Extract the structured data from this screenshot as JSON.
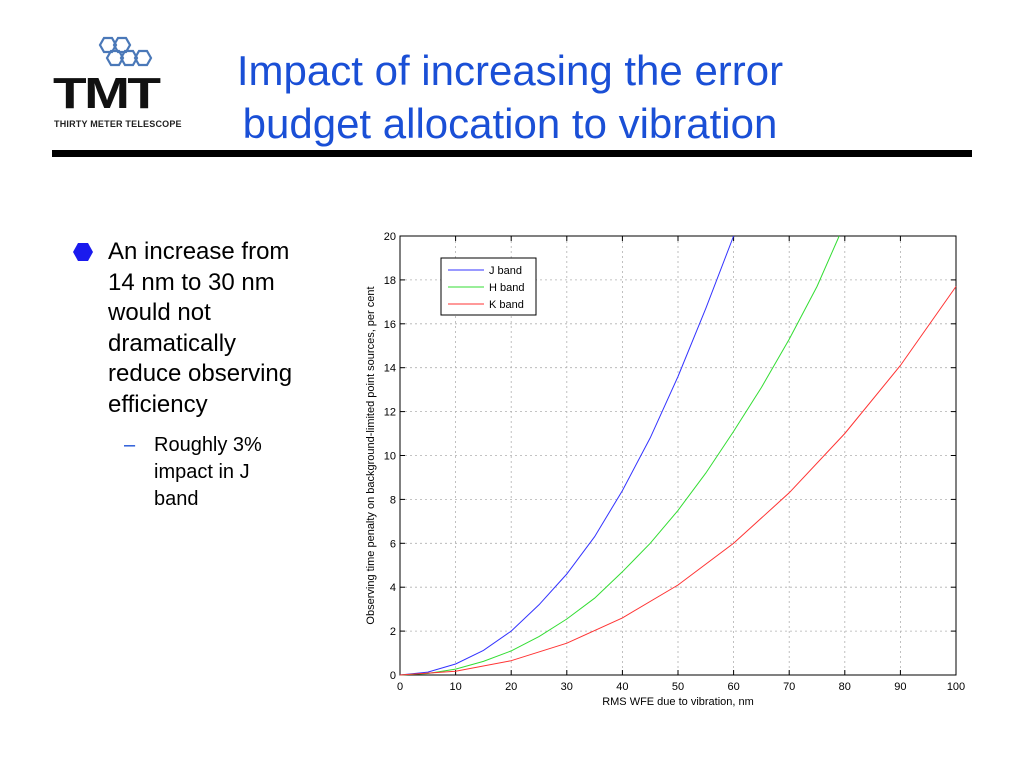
{
  "logo": {
    "mark": "TMT",
    "subtitle": "THIRTY METER TELESCOPE",
    "icon": "hexagon-cluster-icon"
  },
  "slide": {
    "title_lines": [
      "Impact of increasing the error",
      "budget allocation to vibration"
    ],
    "bullet": "An increase from\n14 nm to 30 nm\nwould not\ndramatically\nreduce observing\nefficiency",
    "sub_bullet_marker": "–",
    "sub_bullet": "Roughly 3%\nimpact in J\nband",
    "accent_color": "#1a4fd6"
  },
  "chart_data": {
    "type": "line",
    "title": "",
    "xlabel": "RMS WFE due to vibration, nm",
    "ylabel": "Observing time penalty on background-limited point sources, per cent",
    "xlim": [
      0,
      100
    ],
    "ylim": [
      0,
      20
    ],
    "xticks": [
      0,
      10,
      20,
      30,
      40,
      50,
      60,
      70,
      80,
      90,
      100
    ],
    "yticks": [
      0,
      2,
      4,
      6,
      8,
      10,
      12,
      14,
      16,
      18,
      20
    ],
    "grid": true,
    "legend_position": "top-left",
    "series": [
      {
        "name": "J band",
        "color": "#3333ff",
        "x": [
          0,
          5,
          10,
          15,
          20,
          25,
          30,
          35,
          40,
          45,
          50,
          55,
          60
        ],
        "y": [
          0,
          0.13,
          0.5,
          1.12,
          2.0,
          3.2,
          4.6,
          6.3,
          8.4,
          10.8,
          13.6,
          16.7,
          20.0
        ]
      },
      {
        "name": "H band",
        "color": "#33dd33",
        "x": [
          0,
          5,
          10,
          15,
          20,
          25,
          30,
          35,
          40,
          45,
          50,
          55,
          60,
          65,
          70,
          75,
          79
        ],
        "y": [
          0,
          0.07,
          0.27,
          0.62,
          1.1,
          1.75,
          2.55,
          3.5,
          4.7,
          6.0,
          7.5,
          9.2,
          11.1,
          13.1,
          15.3,
          17.7,
          20.0
        ]
      },
      {
        "name": "K band",
        "color": "#ff3333",
        "x": [
          0,
          10,
          20,
          30,
          40,
          50,
          60,
          70,
          80,
          90,
          100
        ],
        "y": [
          0,
          0.17,
          0.65,
          1.45,
          2.6,
          4.1,
          6.0,
          8.3,
          11.0,
          14.1,
          17.7
        ]
      }
    ]
  }
}
